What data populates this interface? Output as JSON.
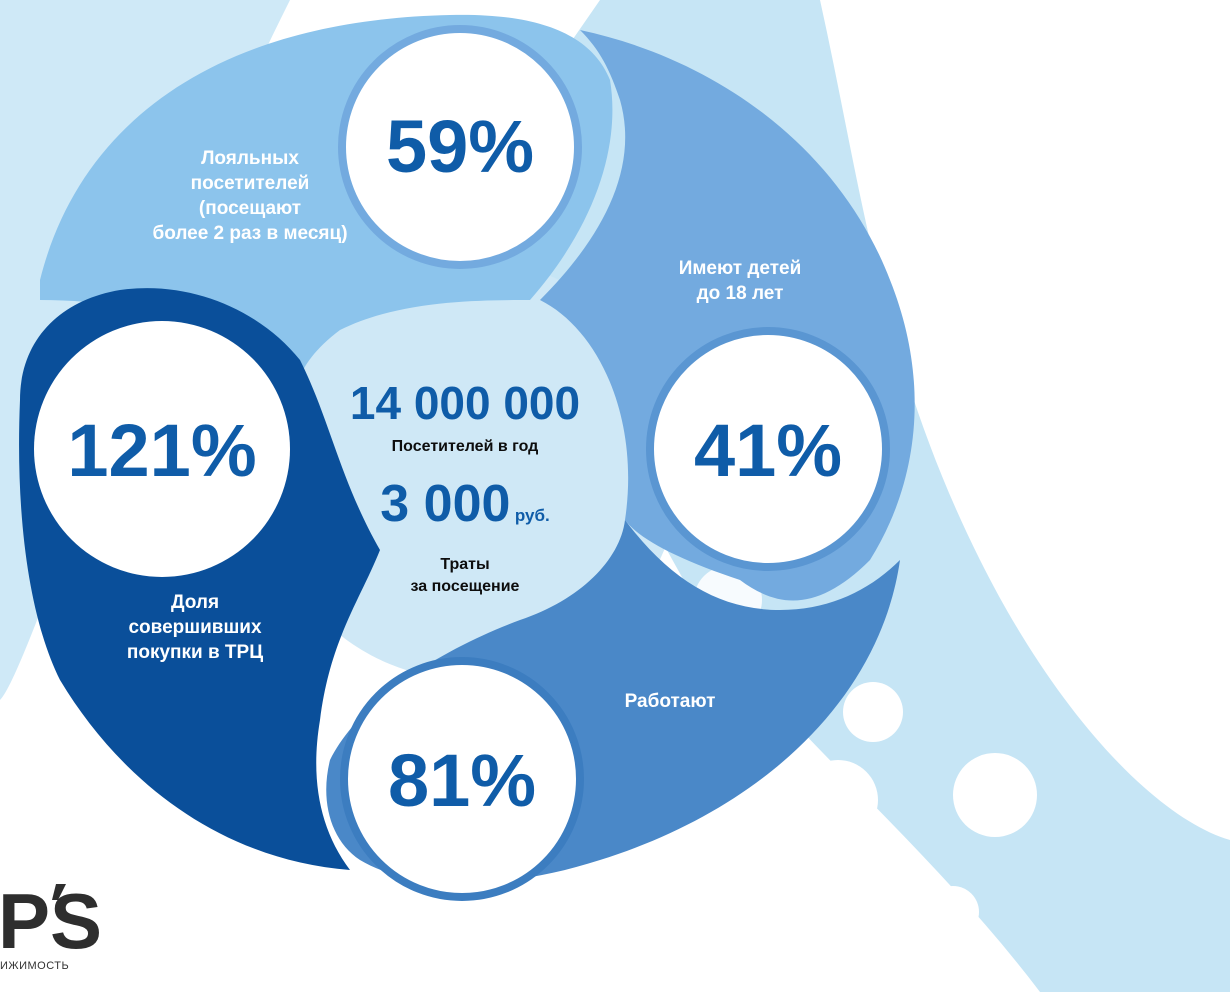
{
  "colors": {
    "background_light": "#c9e6f5",
    "ring_light": "#8cc4ec",
    "ring_mid": "#6fa6dc",
    "ring_work": "#4a88c8",
    "ring_dark": "#0a4f9a",
    "accent_text": "#0f5ca8"
  },
  "center": {
    "visitors_value": "14 000 000",
    "visitors_label": "Посетителей в год",
    "spend_value": "3 000",
    "spend_unit": "руб.",
    "spend_label_line1": "Траты",
    "spend_label_line2": "за посещение"
  },
  "segments": [
    {
      "percent": "59%",
      "label_lines": [
        "Лояльных",
        "посетителей",
        "(посещают",
        "более 2 раз в месяц)"
      ]
    },
    {
      "percent": "41%",
      "label_lines": [
        "Имеют детей",
        "до 18 лет"
      ]
    },
    {
      "percent": "81%",
      "label_lines": [
        "Работают"
      ]
    },
    {
      "percent": "121%",
      "label_lines": [
        "Доля",
        "совершивших",
        "покупки в ТРЦ"
      ]
    }
  ],
  "logo": {
    "mark_icon": "ps-logo-mark",
    "caption": "ИЖИМОСТЬ"
  }
}
